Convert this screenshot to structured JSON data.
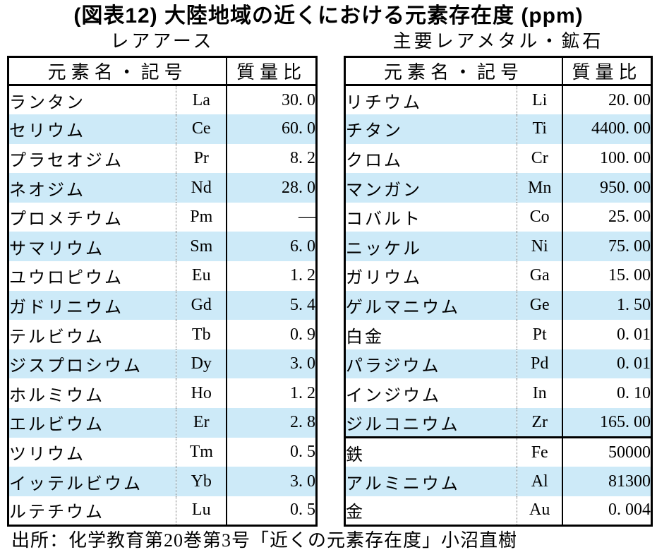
{
  "title": "(図表12) 大陸地域の近くにおける元素存在度 (ppm)",
  "source": "出所：化学教育第20巻第3号「近くの元素存在度」小沼直樹",
  "colors": {
    "alt_row": "#cdeaf8",
    "border": "#000000",
    "dotted_divider": "#7a7a7a"
  },
  "tables": [
    {
      "subtitle": "レアアース",
      "header": {
        "name_symbol": "元素名・記号",
        "mass": "質量比"
      },
      "group_break_index": null,
      "rows": [
        {
          "name": "ランタン",
          "symbol": "La",
          "value": "30. 0"
        },
        {
          "name": "セリウム",
          "symbol": "Ce",
          "value": "60. 0"
        },
        {
          "name": "プラセオジム",
          "symbol": "Pr",
          "value": "8. 2"
        },
        {
          "name": "ネオジム",
          "symbol": "Nd",
          "value": "28. 0"
        },
        {
          "name": "プロメチウム",
          "symbol": "Pm",
          "value": "—"
        },
        {
          "name": "サマリウム",
          "symbol": "Sm",
          "value": "6. 0"
        },
        {
          "name": "ユウロピウム",
          "symbol": "Eu",
          "value": "1. 2"
        },
        {
          "name": "ガドリニウム",
          "symbol": "Gd",
          "value": "5. 4"
        },
        {
          "name": "テルビウム",
          "symbol": "Tb",
          "value": "0. 9"
        },
        {
          "name": "ジスプロシウム",
          "symbol": "Dy",
          "value": "3. 0"
        },
        {
          "name": "ホルミウム",
          "symbol": "Ho",
          "value": "1. 2"
        },
        {
          "name": "エルビウム",
          "symbol": "Er",
          "value": "2. 8"
        },
        {
          "name": "ツリウム",
          "symbol": "Tm",
          "value": "0. 5"
        },
        {
          "name": "イッテルビウム",
          "symbol": "Yb",
          "value": "3. 0"
        },
        {
          "name": "ルテチウム",
          "symbol": "Lu",
          "value": "0. 5"
        }
      ]
    },
    {
      "subtitle": "主要レアメタル・鉱石",
      "header": {
        "name_symbol": "元素名・記号",
        "mass": "質量比"
      },
      "group_break_index": 12,
      "rows": [
        {
          "name": "リチウム",
          "symbol": "Li",
          "value": "20. 00"
        },
        {
          "name": "チタン",
          "symbol": "Ti",
          "value": "4400. 00"
        },
        {
          "name": "クロム",
          "symbol": "Cr",
          "value": "100. 00"
        },
        {
          "name": "マンガン",
          "symbol": "Mn",
          "value": "950. 00"
        },
        {
          "name": "コバルト",
          "symbol": "Co",
          "value": "25. 00"
        },
        {
          "name": "ニッケル",
          "symbol": "Ni",
          "value": "75. 00"
        },
        {
          "name": "ガリウム",
          "symbol": "Ga",
          "value": "15. 00"
        },
        {
          "name": "ゲルマニウム",
          "symbol": "Ge",
          "value": "1. 50"
        },
        {
          "name": "白金",
          "symbol": "Pt",
          "value": "0. 01"
        },
        {
          "name": "パラジウム",
          "symbol": "Pd",
          "value": "0. 01"
        },
        {
          "name": "インジウム",
          "symbol": "In",
          "value": "0. 10"
        },
        {
          "name": "ジルコニウム",
          "symbol": "Zr",
          "value": "165. 00"
        },
        {
          "name": "鉄",
          "symbol": "Fe",
          "value": "50000"
        },
        {
          "name": "アルミニウム",
          "symbol": "Al",
          "value": "81300"
        },
        {
          "name": "金",
          "symbol": "Au",
          "value": "0. 004"
        }
      ]
    }
  ],
  "chart_data": [
    {
      "type": "table",
      "title": "レアアース",
      "columns": [
        "元素名",
        "記号",
        "質量比(ppm)"
      ],
      "rows": [
        [
          "ランタン",
          "La",
          30.0
        ],
        [
          "セリウム",
          "Ce",
          60.0
        ],
        [
          "プラセオジム",
          "Pr",
          8.2
        ],
        [
          "ネオジム",
          "Nd",
          28.0
        ],
        [
          "プロメチウム",
          "Pm",
          null
        ],
        [
          "サマリウム",
          "Sm",
          6.0
        ],
        [
          "ユウロピウム",
          "Eu",
          1.2
        ],
        [
          "ガドリニウム",
          "Gd",
          5.4
        ],
        [
          "テルビウム",
          "Tb",
          0.9
        ],
        [
          "ジスプロシウム",
          "Dy",
          3.0
        ],
        [
          "ホルミウム",
          "Ho",
          1.2
        ],
        [
          "エルビウム",
          "Er",
          2.8
        ],
        [
          "ツリウム",
          "Tm",
          0.5
        ],
        [
          "イッテルビウム",
          "Yb",
          3.0
        ],
        [
          "ルテチウム",
          "Lu",
          0.5
        ]
      ]
    },
    {
      "type": "table",
      "title": "主要レアメタル・鉱石",
      "columns": [
        "元素名",
        "記号",
        "質量比(ppm)"
      ],
      "rows": [
        [
          "リチウム",
          "Li",
          20.0
        ],
        [
          "チタン",
          "Ti",
          4400.0
        ],
        [
          "クロム",
          "Cr",
          100.0
        ],
        [
          "マンガン",
          "Mn",
          950.0
        ],
        [
          "コバルト",
          "Co",
          25.0
        ],
        [
          "ニッケル",
          "Ni",
          75.0
        ],
        [
          "ガリウム",
          "Ga",
          15.0
        ],
        [
          "ゲルマニウム",
          "Ge",
          1.5
        ],
        [
          "白金",
          "Pt",
          0.01
        ],
        [
          "パラジウム",
          "Pd",
          0.01
        ],
        [
          "インジウム",
          "In",
          0.1
        ],
        [
          "ジルコニウム",
          "Zr",
          165.0
        ],
        [
          "鉄",
          "Fe",
          50000
        ],
        [
          "アルミニウム",
          "Al",
          81300
        ],
        [
          "金",
          "Au",
          0.004
        ]
      ]
    }
  ]
}
